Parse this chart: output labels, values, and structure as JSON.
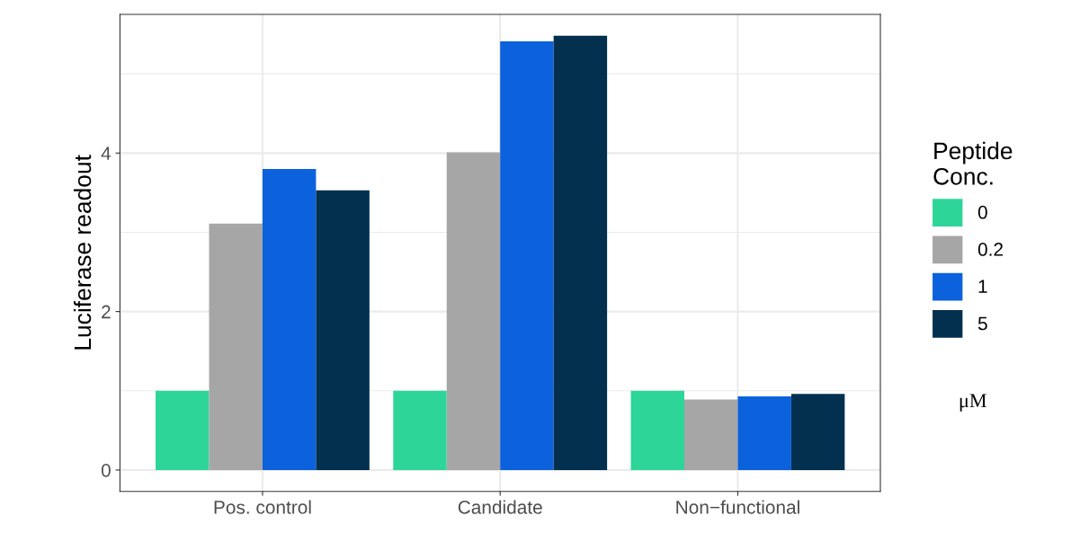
{
  "chart_data": {
    "type": "bar",
    "ylabel": "Luciferase readout",
    "legend_title": "Peptide\nConc.",
    "categories": [
      "Pos. control",
      "Candidate",
      "Non−functional"
    ],
    "series": [
      {
        "name": "0",
        "color": "#2dd698",
        "values": [
          1.0,
          1.0,
          1.0
        ]
      },
      {
        "name": "0.2",
        "color": "#a6a6a6",
        "values": [
          3.11,
          4.01,
          0.89
        ]
      },
      {
        "name": "1",
        "color": "#0c62dc",
        "values": [
          3.8,
          5.41,
          0.93
        ]
      },
      {
        "name": "5",
        "color": "#03304f",
        "values": [
          3.53,
          5.48,
          0.96
        ]
      }
    ],
    "ylim": [
      -0.27,
      5.75
    ],
    "yticks": [
      0,
      {
        "value": 1,
        "label": null
      },
      2,
      {
        "value": 3,
        "label": null
      },
      4,
      {
        "value": 5,
        "label": null
      }
    ],
    "grid": true,
    "legend": "right",
    "annotations": [
      "μM"
    ]
  }
}
